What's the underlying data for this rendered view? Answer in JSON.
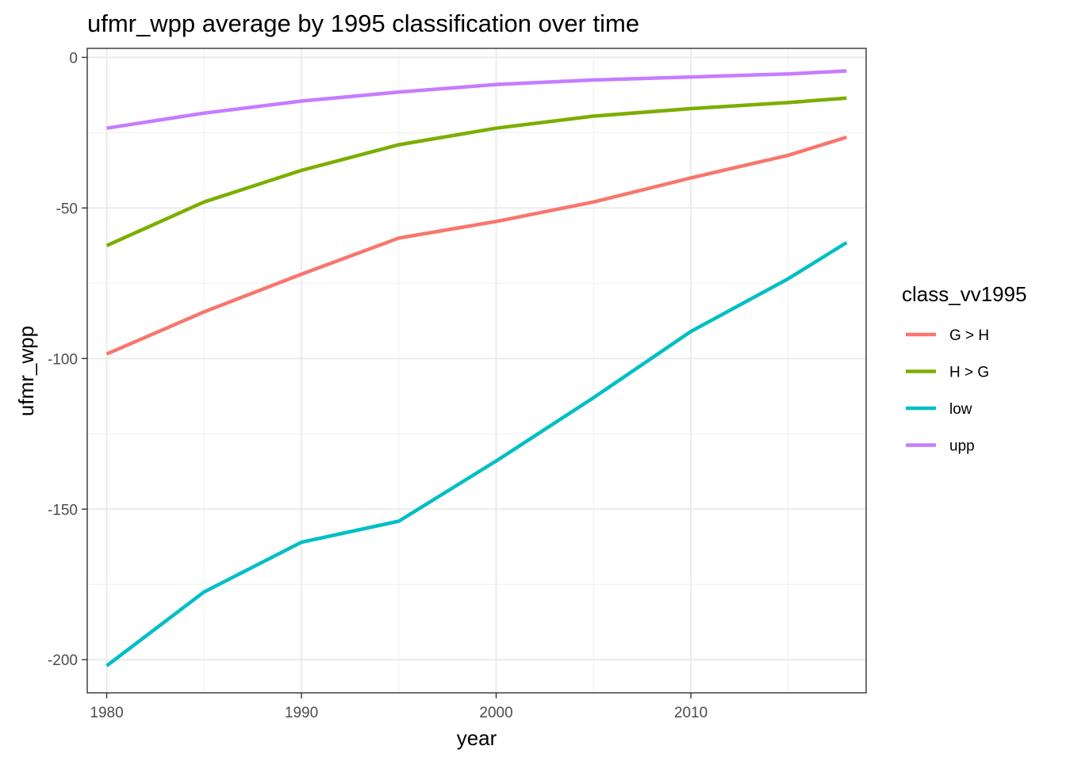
{
  "chart_data": {
    "type": "line",
    "title": "ufmr_wpp average by 1995 classification over time",
    "xlabel": "year",
    "ylabel": "ufmr_wpp",
    "x": [
      1980,
      1985,
      1990,
      1995,
      2000,
      2005,
      2010,
      2015,
      2018
    ],
    "xlim": [
      1979,
      2019
    ],
    "ylim": [
      -211,
      3
    ],
    "x_ticks": [
      1980,
      1990,
      2000,
      2010
    ],
    "y_ticks": [
      0,
      -50,
      -100,
      -150,
      -200
    ],
    "x_minor": [
      1985,
      1995,
      2005,
      2015
    ],
    "y_minor": [
      -25,
      -75,
      -125,
      -175
    ],
    "grid": true,
    "legend": {
      "title": "class_vv1995",
      "placement": "right"
    },
    "series": [
      {
        "name": "G > H",
        "color": "#F8766D",
        "values": [
          -98.5,
          -84.5,
          -72,
          -60,
          -54.5,
          -48,
          -40,
          -32.5,
          -26.5
        ]
      },
      {
        "name": "H > G",
        "color": "#7CAE00",
        "values": [
          -62.5,
          -48,
          -37.5,
          -29,
          -23.5,
          -19.5,
          -17,
          -15,
          -13.5
        ]
      },
      {
        "name": "low",
        "color": "#00BFC4",
        "values": [
          -202,
          -177.5,
          -161,
          -154,
          -134,
          -113,
          -91,
          -73.5,
          -61.5
        ]
      },
      {
        "name": "upp",
        "color": "#C77CFF",
        "values": [
          -23.5,
          -18.5,
          -14.5,
          -11.5,
          -9,
          -7.5,
          -6.5,
          -5.5,
          -4.5
        ]
      }
    ]
  }
}
